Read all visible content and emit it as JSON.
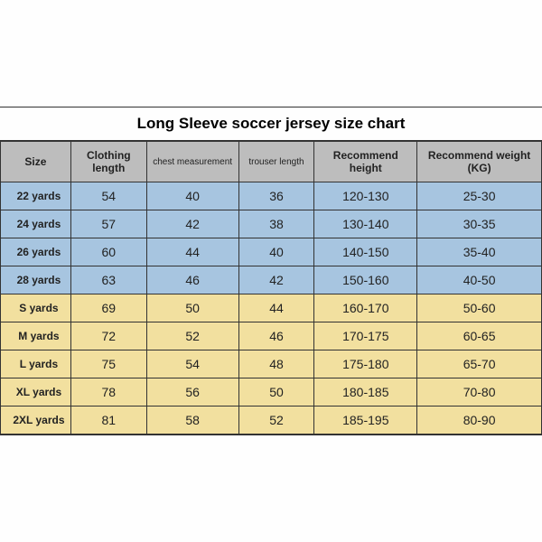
{
  "title": "Long Sleeve soccer jersey size chart",
  "table": {
    "type": "table",
    "columns": [
      "Size",
      "Clothing length",
      "chest measurement",
      "trouser length",
      "Recommend height",
      "Recommend weight (KG)"
    ],
    "column_widths_pct": [
      13,
      14,
      17,
      14,
      19,
      23
    ],
    "header_bg": "#bdbdbd",
    "border_color": "#333333",
    "background_color": "#fefefe",
    "row_colors": {
      "blue": "#a7c5e0",
      "yellow": "#f2e09f"
    },
    "title_fontsize": 17,
    "header_fontsize": 12,
    "cell_fontsize": 14,
    "rows": [
      {
        "group": "blue",
        "cells": [
          "22 yards",
          "54",
          "40",
          "36",
          "120-130",
          "25-30"
        ]
      },
      {
        "group": "blue",
        "cells": [
          "24 yards",
          "57",
          "42",
          "38",
          "130-140",
          "30-35"
        ]
      },
      {
        "group": "blue",
        "cells": [
          "26 yards",
          "60",
          "44",
          "40",
          "140-150",
          "35-40"
        ]
      },
      {
        "group": "blue",
        "cells": [
          "28 yards",
          "63",
          "46",
          "42",
          "150-160",
          "40-50"
        ]
      },
      {
        "group": "yellow",
        "cells": [
          "S yards",
          "69",
          "50",
          "44",
          "160-170",
          "50-60"
        ]
      },
      {
        "group": "yellow",
        "cells": [
          "M yards",
          "72",
          "52",
          "46",
          "170-175",
          "60-65"
        ]
      },
      {
        "group": "yellow",
        "cells": [
          "L yards",
          "75",
          "54",
          "48",
          "175-180",
          "65-70"
        ]
      },
      {
        "group": "yellow",
        "cells": [
          "XL yards",
          "78",
          "56",
          "50",
          "180-185",
          "70-80"
        ]
      },
      {
        "group": "yellow",
        "cells": [
          "2XL yards",
          "81",
          "58",
          "52",
          "185-195",
          "80-90"
        ]
      }
    ]
  }
}
